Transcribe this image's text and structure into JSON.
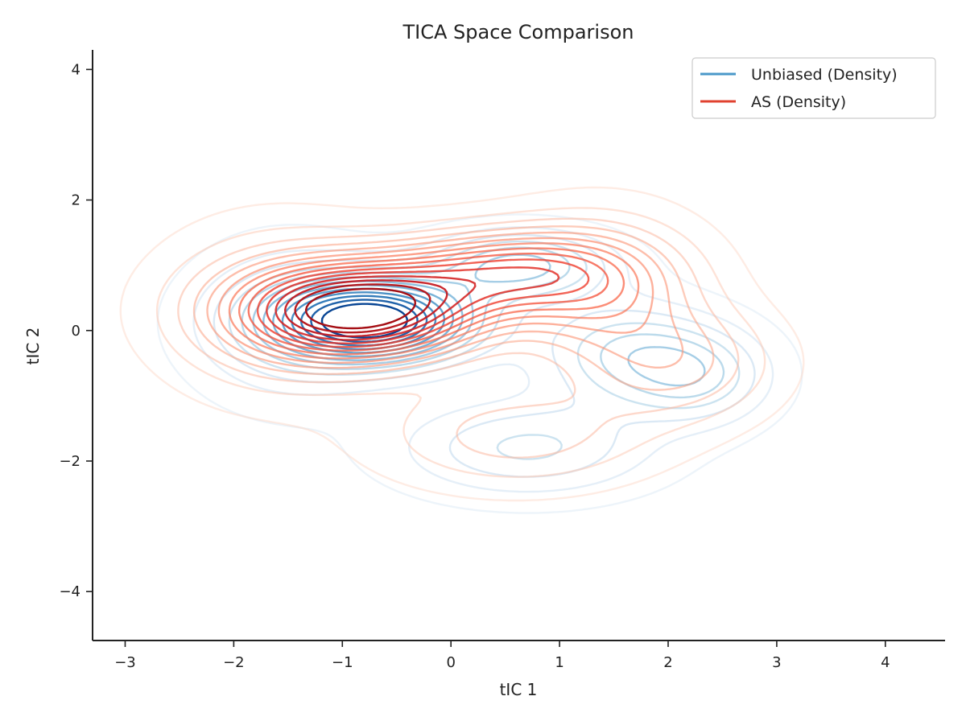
{
  "chart_data": {
    "type": "contour",
    "title": "TICA Space Comparison",
    "xlabel": "tIC 1",
    "ylabel": "tIC 2",
    "xlim": [
      -3.3,
      4.55
    ],
    "ylim": [
      -4.75,
      4.3
    ],
    "xticks": [
      -3,
      -2,
      -1,
      0,
      1,
      2,
      3,
      4
    ],
    "yticks": [
      -4,
      -2,
      0,
      2,
      4
    ],
    "xtick_labels": [
      "−3",
      "−2",
      "−1",
      "0",
      "1",
      "2",
      "3",
      "4"
    ],
    "ytick_labels": [
      "−4",
      "−2",
      "0",
      "2",
      "4"
    ],
    "grid": false,
    "legend_position": "top-right",
    "series": [
      {
        "name": "Unbiased (Density)",
        "legend_color": "#4a98c9",
        "colormap": "Blues",
        "levels": 13,
        "components": [
          {
            "cx": -0.7,
            "cy": 0.15,
            "sx": 0.65,
            "sy": 0.45,
            "w": 1.0
          },
          {
            "cx": 0.65,
            "cy": 1.0,
            "sx": 0.55,
            "sy": 0.35,
            "w": 0.45
          },
          {
            "cx": 1.6,
            "cy": -0.35,
            "sx": 0.55,
            "sy": 0.55,
            "w": 0.33
          },
          {
            "cx": 2.3,
            "cy": -0.7,
            "sx": 0.45,
            "sy": 0.5,
            "w": 0.3
          },
          {
            "cx": 0.7,
            "cy": -1.8,
            "sx": 0.8,
            "sy": 0.5,
            "w": 0.28
          },
          {
            "cx": -1.5,
            "cy": 0.1,
            "sx": 0.6,
            "sy": 0.8,
            "w": 0.22
          }
        ]
      },
      {
        "name": "AS (Density)",
        "legend_color": "#e0412f",
        "colormap": "Reds",
        "levels": 15,
        "components": [
          {
            "cx": -0.8,
            "cy": 0.3,
            "sx": 0.75,
            "sy": 0.5,
            "w": 1.0
          },
          {
            "cx": 0.5,
            "cy": 0.9,
            "sx": 0.75,
            "sy": 0.45,
            "w": 0.55
          },
          {
            "cx": 1.4,
            "cy": 0.6,
            "sx": 0.6,
            "sy": 0.75,
            "w": 0.35
          },
          {
            "cx": 2.1,
            "cy": -0.5,
            "sx": 0.6,
            "sy": 0.6,
            "w": 0.25
          },
          {
            "cx": 0.6,
            "cy": -1.6,
            "sx": 0.85,
            "sy": 0.55,
            "w": 0.22
          },
          {
            "cx": -1.6,
            "cy": 0.3,
            "sx": 0.7,
            "sy": 0.85,
            "w": 0.25
          }
        ]
      }
    ]
  }
}
